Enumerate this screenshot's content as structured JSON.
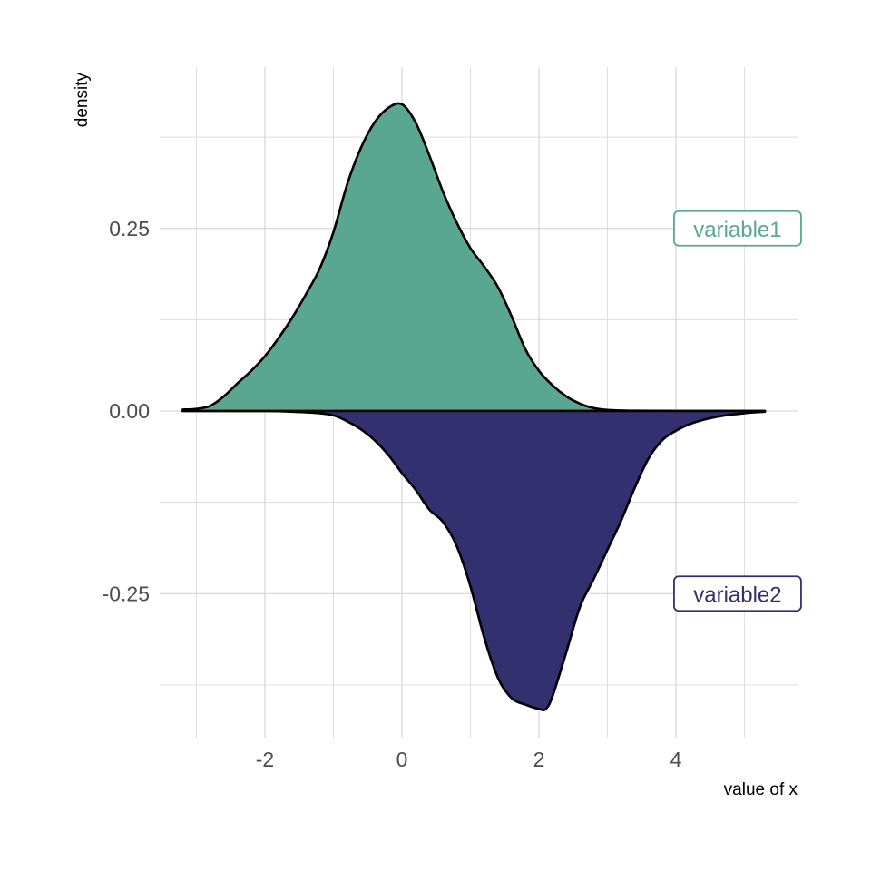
{
  "chart_data": {
    "type": "area",
    "subtype": "mirrored density",
    "xlabel": "value of x",
    "ylabel": "density",
    "xlim": [
      -3.3,
      5.8
    ],
    "ylim": [
      -0.44,
      0.46
    ],
    "x_ticks": [
      -2,
      0,
      2,
      4
    ],
    "x_tick_labels": [
      "-2",
      "0",
      "2",
      "4"
    ],
    "y_ticks": [
      -0.25,
      0,
      0.25
    ],
    "y_tick_labels": [
      "-0.25",
      "0.00",
      "0.25"
    ],
    "grid": true,
    "series": [
      {
        "name": "variable1",
        "color": "#59a791",
        "label_at": [
          4.9,
          0.25
        ],
        "x": [
          -3.2,
          -3.0,
          -2.8,
          -2.6,
          -2.4,
          -2.2,
          -2.0,
          -1.8,
          -1.6,
          -1.4,
          -1.2,
          -1.0,
          -0.8,
          -0.6,
          -0.4,
          -0.2,
          0.0,
          0.2,
          0.4,
          0.6,
          0.8,
          1.0,
          1.2,
          1.4,
          1.6,
          1.8,
          2.0,
          2.2,
          2.4,
          2.6,
          2.8,
          3.0,
          3.2,
          3.4,
          3.8,
          4.2,
          4.6,
          5.0,
          5.3
        ],
        "y": [
          0.002,
          0.003,
          0.007,
          0.02,
          0.038,
          0.055,
          0.075,
          0.1,
          0.128,
          0.16,
          0.195,
          0.245,
          0.31,
          0.36,
          0.395,
          0.415,
          0.42,
          0.395,
          0.35,
          0.3,
          0.258,
          0.223,
          0.198,
          0.17,
          0.13,
          0.085,
          0.055,
          0.035,
          0.02,
          0.01,
          0.004,
          0.0015,
          0.0008,
          0.0004,
          0.0002,
          0.0001,
          0.0001,
          0.0001,
          0.0001
        ]
      },
      {
        "name": "variable2",
        "color": "#32306e",
        "label_at": [
          4.9,
          -0.25
        ],
        "x": [
          -3.2,
          -2.5,
          -2.0,
          -1.6,
          -1.2,
          -1.0,
          -0.8,
          -0.6,
          -0.4,
          -0.2,
          0.0,
          0.2,
          0.4,
          0.6,
          0.8,
          1.0,
          1.2,
          1.4,
          1.6,
          1.8,
          2.0,
          2.1,
          2.2,
          2.4,
          2.6,
          2.8,
          3.0,
          3.2,
          3.4,
          3.6,
          3.8,
          4.0,
          4.2,
          4.4,
          4.6,
          4.8,
          5.0,
          5.2,
          5.3
        ],
        "y": [
          0.0,
          0.0,
          0.0,
          -0.001,
          -0.003,
          -0.006,
          -0.014,
          -0.025,
          -0.04,
          -0.06,
          -0.085,
          -0.108,
          -0.135,
          -0.152,
          -0.185,
          -0.24,
          -0.31,
          -0.365,
          -0.393,
          -0.402,
          -0.408,
          -0.408,
          -0.39,
          -0.33,
          -0.268,
          -0.23,
          -0.19,
          -0.15,
          -0.105,
          -0.065,
          -0.04,
          -0.027,
          -0.018,
          -0.012,
          -0.008,
          -0.005,
          -0.003,
          -0.0015,
          -0.001
        ]
      }
    ]
  }
}
